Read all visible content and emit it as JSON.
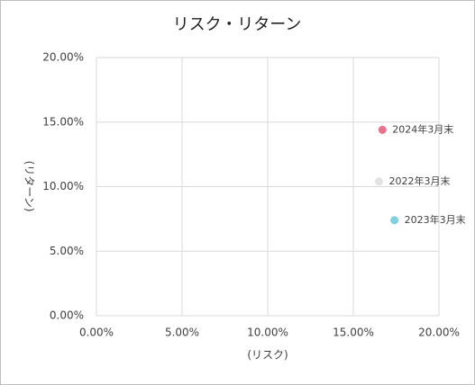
{
  "chart_data": {
    "type": "scatter",
    "title": "リスク・リターン",
    "x_label": "(リスク)",
    "y_label": "(リターン)",
    "series": [
      {
        "name": "2024年3月末",
        "color": "#e8738b",
        "x": [
          16.7
        ],
        "y": [
          14.4
        ]
      },
      {
        "name": "2022年3月末",
        "color": "#e2e2e2",
        "x": [
          16.5
        ],
        "y": [
          10.4
        ]
      },
      {
        "name": "2023年3月末",
        "color": "#80cfe2",
        "x": [
          17.4
        ],
        "y": [
          7.4
        ]
      }
    ],
    "xlim": [
      0,
      20
    ],
    "ylim": [
      0,
      20
    ],
    "xticks": [
      {
        "value": 0,
        "label": "0.00%"
      },
      {
        "value": 5,
        "label": "5.00%"
      },
      {
        "value": 10,
        "label": "10.00%"
      },
      {
        "value": 15,
        "label": "15.00%"
      },
      {
        "value": 20,
        "label": "20.00%"
      }
    ],
    "yticks": [
      {
        "value": 0,
        "label": "0.00%"
      },
      {
        "value": 5,
        "label": "5.00%"
      },
      {
        "value": 10,
        "label": "10.00%"
      },
      {
        "value": 15,
        "label": "15.00%"
      },
      {
        "value": 20,
        "label": "20.00%"
      }
    ],
    "grid": true
  }
}
